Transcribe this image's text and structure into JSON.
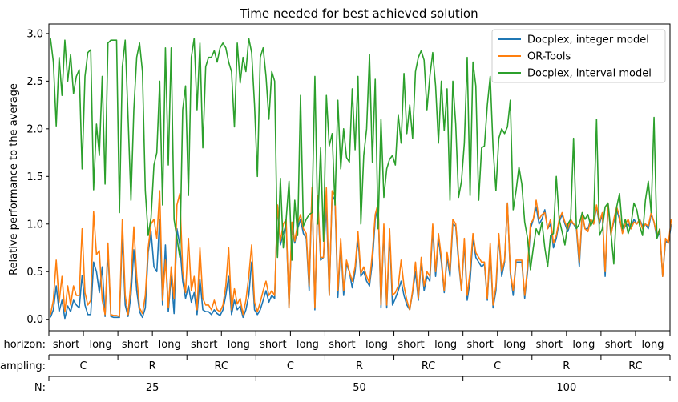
{
  "chart_data": {
    "type": "line",
    "title": "Time needed for best achieved solution",
    "ylabel": "Relative performance to the average",
    "xlabel": "",
    "ylim": [
      -0.12,
      3.1
    ],
    "yticks": [
      "0.0",
      "0.5",
      "1.0",
      "1.5",
      "2.0",
      "2.5",
      "3.0"
    ],
    "legend_position": "top-right",
    "x_count": 216,
    "series": [
      {
        "name": "Docplex, integer model",
        "color": "#1f77b4",
        "values": [
          0.02,
          0.1,
          0.35,
          0.08,
          0.2,
          0.01,
          0.14,
          0.08,
          0.2,
          0.15,
          0.12,
          0.46,
          0.15,
          0.05,
          0.05,
          0.6,
          0.5,
          0.28,
          0.55,
          0.03,
          0.73,
          0.03,
          0.02,
          0.02,
          0.02,
          0.88,
          0.15,
          0.03,
          0.25,
          0.73,
          0.3,
          0.08,
          0.02,
          0.12,
          0.7,
          0.92,
          0.55,
          0.5,
          1.05,
          0.15,
          0.78,
          0.08,
          0.45,
          0.06,
          0.95,
          0.78,
          0.4,
          0.22,
          0.35,
          0.18,
          0.28,
          0.05,
          0.42,
          0.1,
          0.08,
          0.08,
          0.05,
          0.1,
          0.06,
          0.04,
          0.1,
          0.25,
          0.45,
          0.05,
          0.2,
          0.1,
          0.14,
          0.02,
          0.1,
          0.25,
          0.6,
          0.1,
          0.05,
          0.1,
          0.2,
          0.3,
          0.18,
          0.25,
          0.22,
          1.2,
          0.78,
          0.9,
          1.0,
          0.12,
          0.95,
          0.8,
          0.95,
          1.05,
          0.9,
          0.85,
          0.3,
          1.35,
          0.1,
          1.25,
          0.62,
          0.65,
          1.2,
          0.25,
          1.3,
          1.25,
          0.23,
          0.8,
          0.25,
          0.58,
          0.5,
          0.33,
          0.5,
          0.85,
          0.45,
          0.5,
          0.4,
          0.35,
          0.6,
          1.05,
          1.2,
          0.12,
          0.95,
          0.12,
          0.9,
          0.15,
          0.22,
          0.3,
          0.4,
          0.25,
          0.15,
          0.1,
          0.28,
          0.5,
          0.2,
          0.6,
          0.3,
          0.45,
          0.4,
          0.95,
          0.45,
          0.85,
          0.6,
          0.28,
          0.65,
          0.45,
          1.0,
          0.98,
          0.6,
          0.3,
          0.8,
          0.2,
          0.4,
          0.85,
          0.65,
          0.6,
          0.55,
          0.58,
          0.2,
          0.75,
          0.12,
          0.3,
          0.88,
          0.45,
          0.6,
          1.22,
          0.48,
          0.25,
          0.6,
          0.6,
          0.6,
          0.22,
          0.5,
          0.95,
          1.05,
          1.18,
          1.0,
          1.05,
          1.15,
          0.95,
          1.0,
          0.75,
          0.85,
          1.02,
          1.1,
          1.0,
          0.92,
          1.02,
          1.0,
          0.95,
          0.55,
          1.1,
          0.95,
          0.95,
          1.05,
          1.0,
          1.18,
          1.0,
          1.1,
          0.45,
          1.2,
          0.9,
          1.02,
          1.15,
          1.05,
          0.92,
          0.98,
          1.0,
          0.95,
          1.05,
          1.0,
          1.05,
          0.98,
          1.0,
          0.95,
          1.1,
          1.02,
          0.85,
          0.92,
          0.45,
          0.82,
          0.8,
          1.0
        ]
      },
      {
        "name": "OR-Tools",
        "color": "#ff7f0e",
        "values": [
          0.05,
          0.2,
          0.62,
          0.18,
          0.45,
          0.08,
          0.35,
          0.15,
          0.35,
          0.25,
          0.25,
          0.95,
          0.28,
          0.15,
          0.2,
          1.13,
          0.68,
          0.72,
          0.2,
          0.05,
          0.8,
          0.05,
          0.04,
          0.04,
          0.03,
          1.05,
          0.25,
          0.05,
          0.4,
          0.97,
          0.45,
          0.12,
          0.06,
          0.25,
          0.75,
          1.0,
          1.05,
          0.85,
          1.35,
          0.2,
          0.62,
          0.12,
          0.55,
          0.22,
          1.2,
          1.32,
          0.5,
          0.28,
          0.85,
          0.3,
          0.45,
          0.1,
          0.75,
          0.22,
          0.15,
          0.15,
          0.1,
          0.2,
          0.1,
          0.08,
          0.15,
          0.35,
          0.75,
          0.1,
          0.32,
          0.16,
          0.22,
          0.05,
          0.2,
          0.45,
          0.78,
          0.18,
          0.08,
          0.18,
          0.3,
          0.4,
          0.25,
          0.3,
          0.25,
          1.2,
          0.82,
          1.0,
          1.05,
          0.12,
          1.02,
          0.82,
          1.0,
          1.1,
          0.95,
          0.9,
          0.35,
          1.38,
          0.12,
          1.3,
          0.65,
          0.65,
          1.38,
          0.25,
          1.35,
          1.3,
          0.3,
          0.85,
          0.3,
          0.62,
          0.5,
          0.4,
          0.55,
          0.92,
          0.48,
          0.55,
          0.45,
          0.38,
          0.7,
          1.1,
          1.22,
          0.15,
          1.0,
          0.15,
          0.95,
          0.25,
          0.28,
          0.35,
          0.62,
          0.35,
          0.2,
          0.1,
          0.3,
          0.6,
          0.22,
          0.65,
          0.35,
          0.5,
          0.45,
          1.0,
          0.5,
          0.9,
          0.65,
          0.3,
          0.7,
          0.5,
          1.05,
          1.0,
          0.65,
          0.3,
          0.85,
          0.25,
          0.5,
          0.9,
          0.7,
          0.65,
          0.6,
          0.6,
          0.22,
          0.8,
          0.15,
          0.35,
          0.9,
          0.5,
          0.62,
          1.22,
          0.5,
          0.3,
          0.62,
          0.62,
          0.62,
          0.25,
          0.55,
          1.0,
          1.05,
          1.25,
          1.05,
          1.1,
          1.12,
          0.95,
          1.05,
          0.8,
          0.88,
          1.05,
          1.12,
          1.02,
          0.95,
          1.05,
          1.0,
          0.98,
          0.6,
          1.12,
          0.95,
          0.92,
          1.05,
          1.0,
          1.2,
          1.02,
          1.12,
          0.5,
          1.22,
          0.88,
          1.05,
          1.18,
          1.08,
          0.9,
          1.0,
          1.05,
          0.95,
          1.02,
          1.0,
          1.05,
          0.95,
          1.0,
          0.98,
          1.12,
          1.02,
          0.88,
          0.95,
          0.45,
          0.85,
          0.8,
          1.05
        ]
      },
      {
        "name": "Docplex, interval model",
        "color": "#2ca02c",
        "values": [
          2.95,
          2.7,
          2.03,
          2.75,
          2.35,
          2.93,
          2.5,
          2.78,
          2.37,
          2.55,
          2.62,
          1.58,
          2.55,
          2.8,
          2.83,
          1.36,
          2.05,
          1.72,
          2.55,
          1.42,
          2.9,
          2.93,
          2.93,
          2.93,
          1.12,
          2.65,
          2.93,
          2.12,
          1.25,
          2.2,
          2.75,
          2.9,
          2.6,
          1.35,
          0.88,
          1.07,
          1.62,
          1.75,
          2.5,
          1.2,
          2.85,
          1.62,
          2.85,
          1.05,
          0.85,
          0.65,
          2.2,
          2.45,
          1.3,
          2.75,
          2.95,
          2.2,
          2.9,
          1.8,
          2.65,
          2.75,
          2.75,
          2.82,
          2.7,
          2.85,
          2.9,
          2.85,
          2.7,
          2.6,
          2.02,
          2.9,
          2.48,
          2.75,
          2.6,
          2.95,
          2.8,
          2.25,
          1.5,
          2.75,
          2.85,
          2.55,
          2.1,
          2.6,
          2.5,
          0.65,
          1.48,
          0.75,
          1.05,
          1.45,
          0.62,
          1.25,
          0.88,
          2.35,
          0.98,
          1.05,
          1.1,
          1.12,
          2.55,
          1.0,
          1.8,
          0.82,
          2.35,
          1.82,
          1.95,
          1.2,
          2.3,
          1.58,
          2.0,
          1.7,
          1.65,
          2.42,
          1.78,
          2.55,
          1.0,
          1.72,
          2.0,
          2.78,
          1.65,
          2.52,
          0.95,
          2.1,
          1.28,
          1.58,
          1.68,
          1.72,
          1.62,
          2.15,
          1.85,
          2.58,
          1.95,
          2.25,
          1.9,
          2.6,
          2.75,
          2.82,
          2.72,
          2.2,
          2.55,
          2.8,
          2.45,
          1.85,
          2.5,
          1.98,
          2.42,
          1.25,
          2.5,
          2.05,
          1.28,
          1.45,
          1.85,
          2.75,
          1.3,
          2.7,
          2.45,
          1.25,
          1.8,
          1.82,
          2.25,
          2.55,
          1.8,
          1.35,
          1.9,
          2.0,
          1.95,
          2.02,
          2.3,
          1.15,
          1.35,
          1.6,
          1.42,
          1.02,
          0.85,
          0.52,
          0.75,
          0.95,
          0.88,
          1.02,
          0.75,
          0.55,
          0.88,
          0.9,
          1.5,
          1.05,
          0.92,
          0.78,
          1.0,
          1.05,
          1.9,
          0.95,
          1.0,
          1.12,
          1.05,
          1.1,
          0.98,
          1.05,
          2.1,
          0.88,
          0.95,
          1.18,
          1.22,
          0.92,
          0.58,
          1.18,
          1.32,
          0.95,
          1.05,
          0.9,
          1.0,
          1.22,
          1.15,
          0.98,
          0.88,
          1.25,
          1.45,
          1.12,
          2.12,
          0.85,
          0.95
        ]
      }
    ],
    "x_axis_rows": [
      {
        "label": "horizon:",
        "groups": [
          "short",
          "long",
          "short",
          "long",
          "short",
          "long",
          "short",
          "long",
          "short",
          "long",
          "short",
          "long",
          "short",
          "long",
          "short",
          "long",
          "short",
          "long"
        ]
      },
      {
        "label": "sampling:",
        "groups": [
          "C",
          "R",
          "RC",
          "C",
          "R",
          "RC",
          "C",
          "R",
          "RC"
        ]
      },
      {
        "label": "N:",
        "groups": [
          "25",
          "50",
          "100"
        ]
      }
    ]
  }
}
